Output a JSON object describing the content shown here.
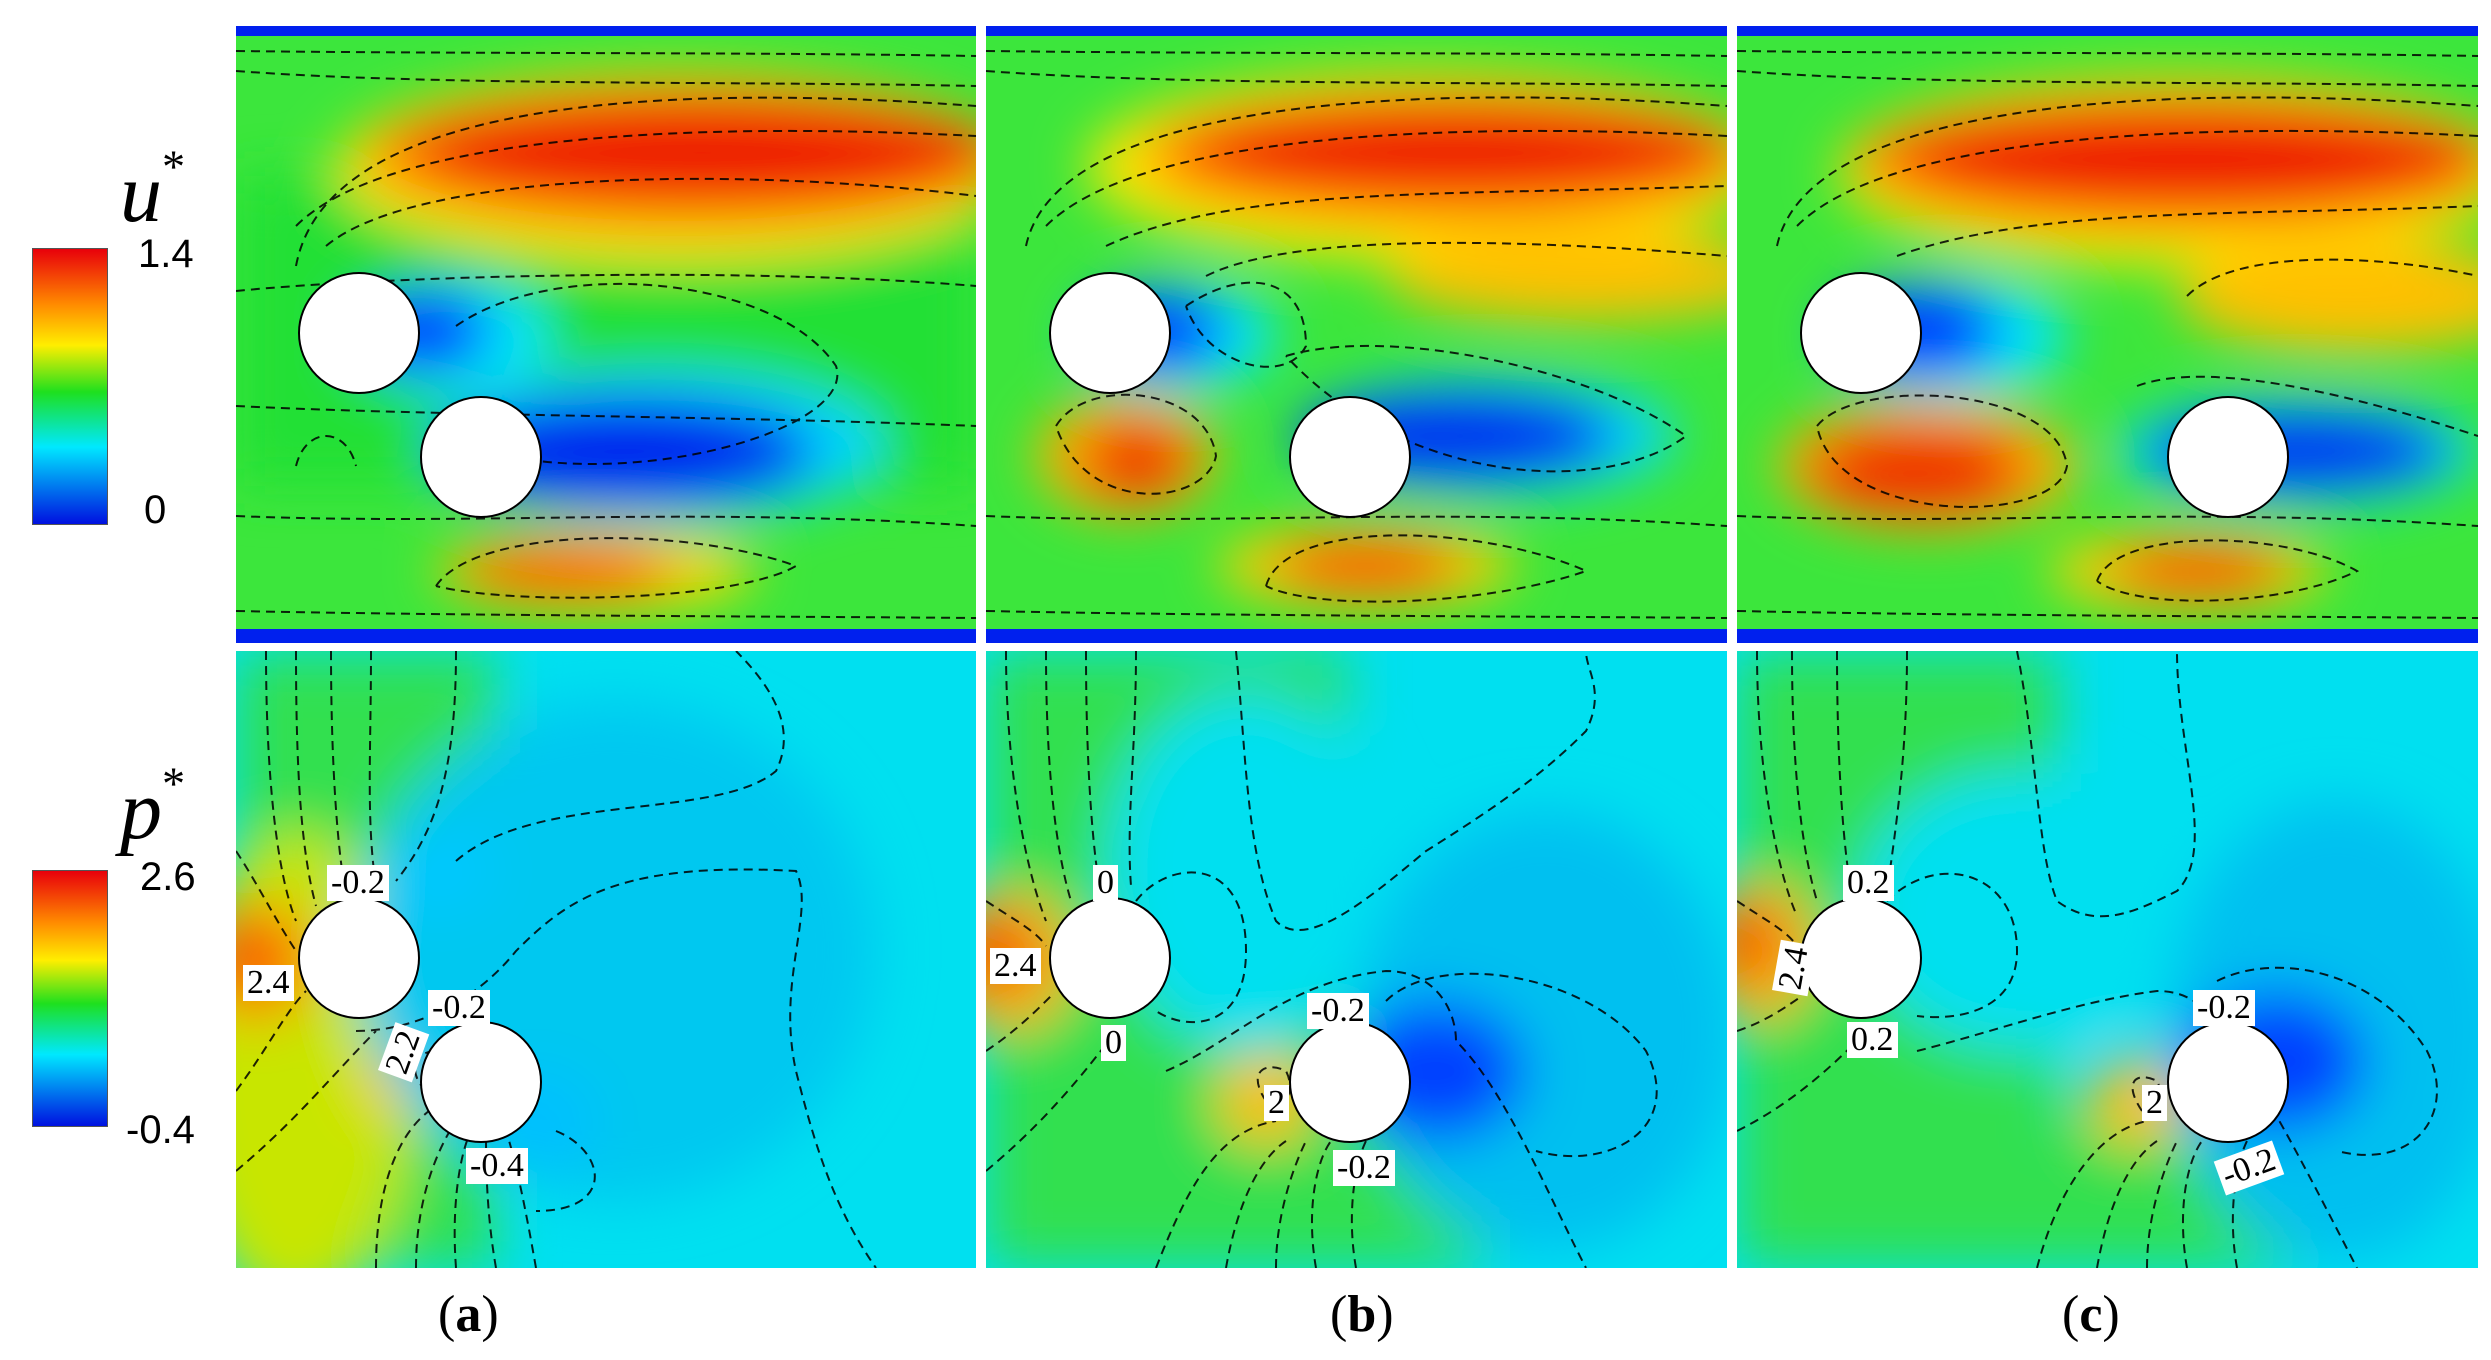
{
  "rows": [
    {
      "var": "u",
      "sup": "*",
      "colorbar": {
        "max": "1.4",
        "min": "0"
      }
    },
    {
      "var": "p",
      "sup": "*",
      "colorbar": {
        "max": "2.6",
        "min": "-0.4"
      }
    }
  ],
  "panels": [
    {
      "caption_open": "(",
      "caption_letter": "a",
      "caption_close": ")",
      "pressure_labels": [
        "-0.2",
        "2.4",
        "-0.2",
        "2.2",
        "-0.4"
      ]
    },
    {
      "caption_open": "(",
      "caption_letter": "b",
      "caption_close": ")",
      "pressure_labels": [
        "0",
        "2.4",
        "0",
        "-0.2",
        "2",
        "-0.2"
      ]
    },
    {
      "caption_open": "(",
      "caption_letter": "c",
      "caption_close": ")",
      "pressure_labels": [
        "0.2",
        "2.4",
        "0.2",
        "-0.2",
        "2",
        "-0.2"
      ]
    }
  ],
  "colors": {
    "jet_red": "#e8000b",
    "jet_orange": "#ff8a00",
    "jet_yellow": "#ffee00",
    "jet_green": "#1ee01e",
    "jet_cyan": "#00e8ff",
    "jet_blue": "#0010e0",
    "background": "#ffffff"
  }
}
